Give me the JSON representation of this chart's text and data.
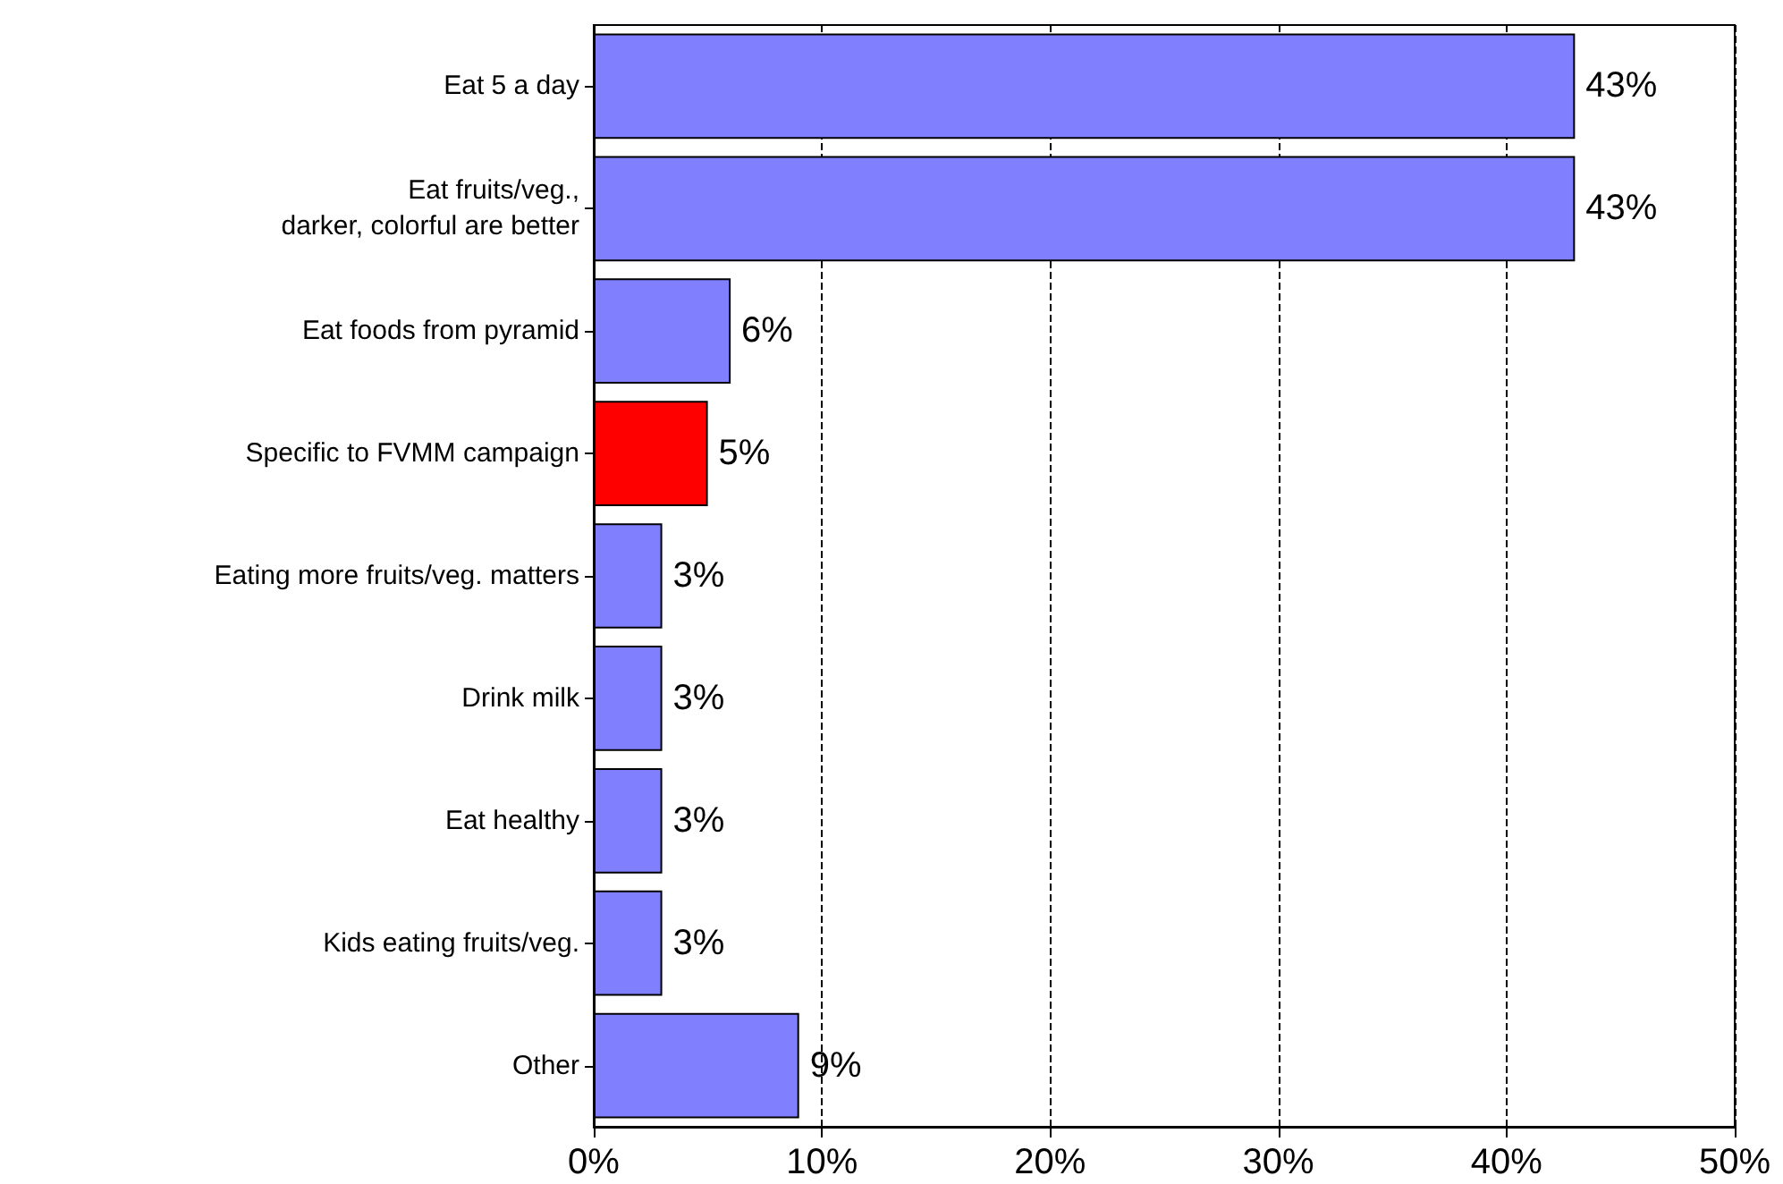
{
  "chart_data": {
    "type": "bar",
    "orientation": "horizontal",
    "categories": [
      "Eat 5 a day",
      "Eat fruits/veg.,\ndarker, colorful are better",
      "Eat foods from pyramid",
      "Specific to FVMM campaign",
      "Eating more fruits/veg. matters",
      "Drink milk",
      "Eat healthy",
      "Kids eating fruits/veg.",
      "Other"
    ],
    "values": [
      43,
      43,
      6,
      5,
      3,
      3,
      3,
      3,
      9
    ],
    "colors": [
      "#8080ff",
      "#8080ff",
      "#8080ff",
      "#ff0000",
      "#8080ff",
      "#8080ff",
      "#8080ff",
      "#8080ff",
      "#8080ff"
    ],
    "value_labels": [
      "43%",
      "43%",
      "6%",
      "5%",
      "3%",
      "3%",
      "3%",
      "3%",
      "9%"
    ],
    "xlim": [
      0,
      50
    ],
    "xticks": [
      {
        "value": 0,
        "label": "0%"
      },
      {
        "value": 10,
        "label": "10%"
      },
      {
        "value": 20,
        "label": "20%"
      },
      {
        "value": 30,
        "label": "30%"
      },
      {
        "value": 40,
        "label": "40%"
      },
      {
        "value": 50,
        "label": "50%"
      }
    ],
    "grid": "x"
  }
}
